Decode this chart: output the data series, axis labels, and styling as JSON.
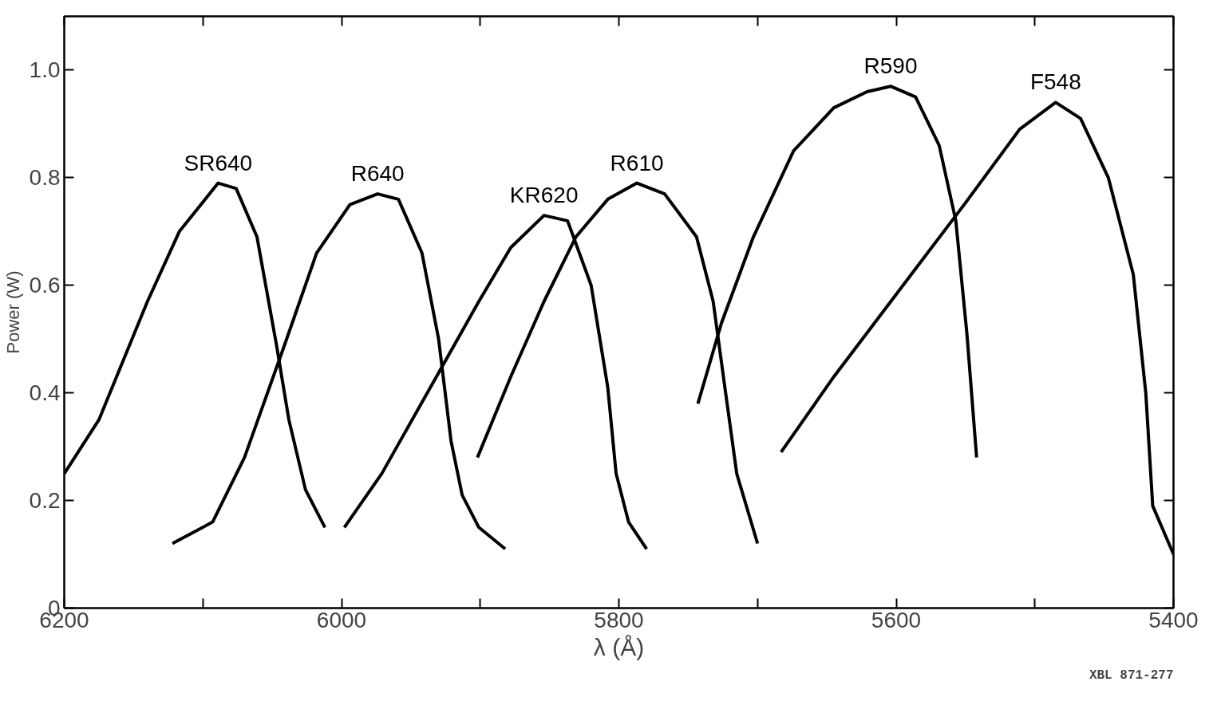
{
  "chart_data": {
    "type": "line",
    "xlabel": "λ (Å)",
    "ylabel": "Power (W)",
    "xlim": [
      6200,
      5400
    ],
    "ylim": [
      0,
      1.1
    ],
    "xticks": [
      6200,
      {
        "value": 6100,
        "label": null
      },
      6000,
      {
        "value": 5900,
        "label": null
      },
      5800,
      {
        "value": 5700,
        "label": null
      },
      5600,
      {
        "value": 5500,
        "label": null
      },
      5400
    ],
    "yticks": [
      0,
      0.2,
      0.4,
      0.6,
      0.8,
      {
        "value": 1,
        "label": "1.0"
      }
    ],
    "grid": false,
    "legend": false,
    "marker": "none",
    "line_style": "solid",
    "annotations": [
      "XBL 871-277"
    ],
    "series": [
      {
        "name": "SR640",
        "color": "#000000",
        "x": [
          6200,
          6175,
          6140,
          6117,
          6089,
          6076,
          6061,
          6047,
          6038,
          6026,
          6012
        ],
        "values": [
          0.25,
          0.35,
          0.57,
          0.7,
          0.79,
          0.78,
          0.69,
          0.49,
          0.35,
          0.22,
          0.15
        ]
      },
      {
        "name": "R640",
        "color": "#000000",
        "x": [
          6122,
          6093,
          6070,
          6041,
          6018,
          5994,
          5974,
          5959,
          5942,
          5930,
          5921,
          5913,
          5901,
          5882
        ],
        "values": [
          0.12,
          0.16,
          0.28,
          0.49,
          0.66,
          0.75,
          0.77,
          0.76,
          0.66,
          0.5,
          0.31,
          0.21,
          0.15,
          0.11
        ]
      },
      {
        "name": "KR620",
        "color": "#000000",
        "x": [
          5998,
          5971,
          5936,
          5901,
          5878,
          5854,
          5837,
          5820,
          5808,
          5802,
          5793,
          5780
        ],
        "values": [
          0.15,
          0.25,
          0.41,
          0.57,
          0.67,
          0.73,
          0.72,
          0.6,
          0.41,
          0.25,
          0.16,
          0.11
        ]
      },
      {
        "name": "R610",
        "color": "#000000",
        "x": [
          5902,
          5878,
          5854,
          5831,
          5808,
          5787,
          5767,
          5744,
          5732,
          5723,
          5715,
          5700
        ],
        "values": [
          0.28,
          0.43,
          0.57,
          0.69,
          0.76,
          0.79,
          0.77,
          0.69,
          0.57,
          0.4,
          0.25,
          0.12
        ]
      },
      {
        "name": "R590",
        "color": "#000000",
        "x": [
          5743,
          5726,
          5703,
          5674,
          5645,
          5621,
          5604,
          5586,
          5569,
          5557,
          5549,
          5542
        ],
        "values": [
          0.38,
          0.53,
          0.69,
          0.85,
          0.93,
          0.96,
          0.97,
          0.95,
          0.86,
          0.72,
          0.51,
          0.28
        ]
      },
      {
        "name": "F548",
        "color": "#000000",
        "x": [
          5683,
          5645,
          5598,
          5551,
          5511,
          5485,
          5467,
          5447,
          5429,
          5420,
          5415,
          5400
        ],
        "values": [
          0.29,
          0.43,
          0.59,
          0.75,
          0.89,
          0.94,
          0.91,
          0.8,
          0.62,
          0.4,
          0.19,
          0.1
        ]
      }
    ]
  }
}
